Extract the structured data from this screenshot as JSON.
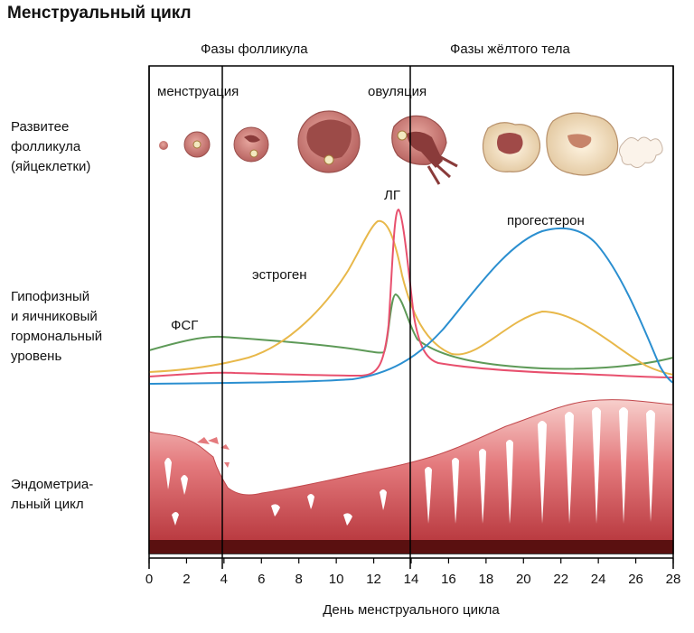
{
  "title": "Менструальный цикл",
  "phases": {
    "follicular": "Фазы фолликула",
    "luteal": "Фазы жёлтого тела"
  },
  "events": {
    "menstruation": "менструация",
    "ovulation": "овуляция"
  },
  "row_labels": {
    "follicle": [
      "Развитее",
      "фолликула",
      "(яйцеклетки)"
    ],
    "hormones": [
      "Гипофизный",
      "и яичниковый",
      "гормональный",
      "уровень"
    ],
    "endometrium": [
      "Эндометриа-",
      "льный цикл"
    ]
  },
  "hormones": {
    "fsh": {
      "label": "ФСГ",
      "color": "#5e9a58"
    },
    "lh": {
      "label": "ЛГ",
      "color": "#e8506e"
    },
    "estrogen": {
      "label": "эстроген",
      "color": "#e8b84a"
    },
    "progesterone": {
      "label": "прогестерон",
      "color": "#2b8fd0"
    }
  },
  "x_axis": {
    "label": "День менструального цикла",
    "ticks": [
      "0",
      "2",
      "4",
      "6",
      "8",
      "10",
      "12",
      "14",
      "16",
      "18",
      "20",
      "22",
      "24",
      "26",
      "28"
    ]
  },
  "colors": {
    "follicle": "#cf8080",
    "corpus": "#f3e4c8",
    "endometrium_top": "#f4c9c6",
    "endometrium_mid": "#d9545a",
    "endometrium_base": "#5a1010"
  },
  "icons": [
    "follicle-stage-icon",
    "ovulating-follicle-icon",
    "corpus-luteum-icon",
    "corpus-albicans-icon"
  ]
}
